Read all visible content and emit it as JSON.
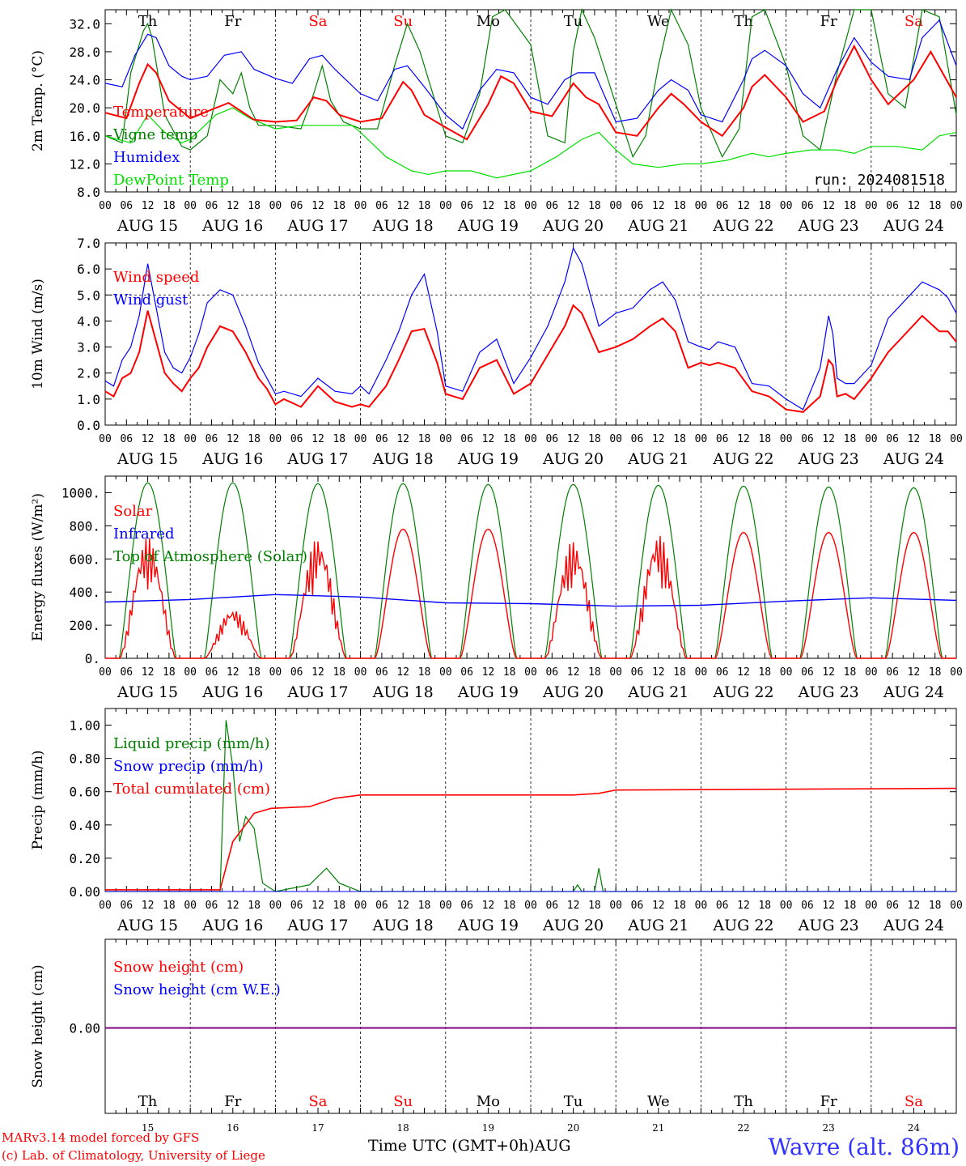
{
  "day_names": [
    "Th",
    "Fr",
    "Sa",
    "Su",
    "Mo",
    "Tu",
    "We",
    "Th",
    "Fr",
    "Sa"
  ],
  "weekend_flags": [
    false,
    false,
    true,
    true,
    false,
    false,
    false,
    false,
    false,
    true
  ],
  "date_labels": [
    "AUG 15",
    "AUG 16",
    "AUG 17",
    "AUG 18",
    "AUG 19",
    "AUG 20",
    "AUG 21",
    "AUG 22",
    "AUG 23",
    "AUG 24"
  ],
  "day_numbers": [
    "15",
    "16",
    "17",
    "18",
    "19",
    "20",
    "21",
    "22",
    "23",
    "24"
  ],
  "hour_labels": [
    "00",
    "06",
    "12",
    "18"
  ],
  "end_hour_label": "00",
  "panel1": {
    "ylabel": "2m Temp. (°C)",
    "ylim": [
      8,
      34
    ],
    "yticks": [
      "8.0",
      "12.0",
      "16.0",
      "20.0",
      "24.0",
      "28.0",
      "32.0"
    ],
    "legend": [
      "Temperature",
      "Vigne temp",
      "Humidex",
      "DewPoint Temp"
    ],
    "run_label": "run: 2024081518"
  },
  "panel2": {
    "ylabel": "10m Wind (m/s)",
    "ylim": [
      0,
      7
    ],
    "yticks": [
      "0.0",
      "1.0",
      "2.0",
      "3.0",
      "4.0",
      "5.0",
      "6.0",
      "7.0"
    ],
    "legend": [
      "Wind speed",
      "Wind gust"
    ]
  },
  "panel3": {
    "ylabel": "Energy fluxes (W/m²)",
    "ylim": [
      0,
      1100
    ],
    "yticks": [
      "0.",
      "200.",
      "400.",
      "600.",
      "800.",
      "1000."
    ],
    "legend": [
      "Solar",
      "Infrared",
      "Top of Atmosphere (Solar)"
    ]
  },
  "panel4": {
    "ylabel": "Precip (mm/h)",
    "ylim": [
      0,
      1.1
    ],
    "yticks": [
      "0.00",
      "0.20",
      "0.40",
      "0.60",
      "0.80",
      "1.00"
    ],
    "legend": [
      "Liquid precip (mm/h)",
      "Snow precip (mm/h)",
      "Total cumulated (cm)"
    ]
  },
  "panel5": {
    "ylabel": "Snow height (cm)",
    "yticks": [
      "0.00"
    ],
    "legend": [
      "Snow height (cm)",
      "Snow height (cm W.E.)"
    ]
  },
  "footer": {
    "model_line": "MARv3.14 model forced by GFS",
    "copyright_line": "(c) Lab. of Climatology, University of Liege",
    "time_label": "Time UTC (GMT+0h)",
    "month_label": "AUG",
    "station": "Wavre (alt. 86m)"
  },
  "colors": {
    "temperature": "#ff0000",
    "vigne": "#008000",
    "humidex": "#0000ff",
    "dewpoint": "#00e000",
    "weekend": "#ff0000",
    "snow_line": "#800080"
  },
  "chart_data": [
    {
      "type": "line",
      "x_unit": "days since 2024-08-15 00 UTC",
      "series": [
        {
          "name": "Temperature",
          "x": [
            0,
            0.25,
            0.4,
            0.5,
            0.6,
            0.75,
            0.9,
            1,
            1.2,
            1.45,
            1.6,
            1.75,
            2,
            2.25,
            2.45,
            2.6,
            2.75,
            3,
            3.25,
            3.5,
            3.6,
            3.75,
            4,
            4.25,
            4.5,
            4.65,
            4.8,
            5,
            5.25,
            5.5,
            5.65,
            5.8,
            6,
            6.25,
            6.5,
            6.65,
            6.8,
            7,
            7.25,
            7.5,
            7.6,
            7.75,
            8,
            8.2,
            8.45,
            8.6,
            8.8,
            9,
            9.2,
            9.5,
            9.7,
            10
          ],
          "y": [
            19.3,
            18.5,
            23.5,
            26.2,
            25,
            21,
            19.5,
            18.5,
            19.5,
            20.7,
            19.5,
            18.3,
            18,
            18.2,
            21.5,
            21,
            19,
            18,
            18.5,
            23.7,
            22.5,
            19,
            17.2,
            15.5,
            20.5,
            24.5,
            23.5,
            19.5,
            18.8,
            23.5,
            21.5,
            20.5,
            16.5,
            16,
            20,
            22,
            20.5,
            18,
            16,
            20,
            23,
            24.7,
            21.5,
            18,
            19.5,
            24,
            28.8,
            24,
            20.5,
            24,
            28,
            21.5
          ]
        },
        {
          "name": "Vigne temp",
          "x": [
            0,
            0.2,
            0.3,
            0.45,
            0.5,
            0.55,
            0.7,
            0.9,
            1,
            1.2,
            1.35,
            1.5,
            1.6,
            1.7,
            1.8,
            2,
            2.3,
            2.45,
            2.55,
            2.65,
            2.8,
            3,
            3.2,
            3.4,
            3.55,
            3.7,
            4,
            4.2,
            4.4,
            4.55,
            4.7,
            5,
            5.2,
            5.4,
            5.5,
            5.6,
            5.75,
            6,
            6.2,
            6.35,
            6.5,
            6.65,
            6.85,
            7,
            7.25,
            7.45,
            7.6,
            7.75,
            8,
            8.2,
            8.4,
            8.6,
            8.8,
            9,
            9.2,
            9.4,
            9.6,
            9.8,
            10
          ],
          "y": [
            16,
            15,
            25,
            31,
            32,
            30,
            19,
            14.5,
            14,
            16,
            24,
            22,
            25,
            20,
            17.5,
            17.5,
            17,
            22,
            26,
            21,
            18,
            17,
            17,
            26,
            32,
            28,
            16,
            15,
            22,
            33,
            34,
            29,
            16,
            15,
            28,
            34,
            30,
            20.5,
            13,
            16,
            26,
            34,
            29,
            20,
            13,
            17,
            33,
            37,
            26,
            16,
            14,
            25,
            34,
            35,
            22,
            20,
            34,
            33,
            19
          ]
        },
        {
          "name": "Humidex",
          "x": [
            0,
            0.2,
            0.35,
            0.5,
            0.6,
            0.75,
            0.9,
            1,
            1.2,
            1.4,
            1.6,
            1.75,
            2,
            2.2,
            2.4,
            2.55,
            2.7,
            3,
            3.2,
            3.4,
            3.55,
            3.75,
            4,
            4.2,
            4.4,
            4.6,
            4.8,
            5,
            5.2,
            5.4,
            5.55,
            5.75,
            6,
            6.25,
            6.5,
            6.65,
            6.85,
            7,
            7.25,
            7.5,
            7.6,
            7.75,
            8,
            8.2,
            8.4,
            8.6,
            8.8,
            9,
            9.2,
            9.45,
            9.6,
            9.8,
            10
          ],
          "y": [
            23.5,
            23,
            27.5,
            30.5,
            30,
            26,
            24.5,
            24,
            24.5,
            27.5,
            28,
            25.5,
            24.2,
            23.5,
            27,
            27.5,
            25.5,
            22,
            21,
            25.5,
            26,
            23,
            19,
            17,
            22.5,
            25.5,
            25,
            21.5,
            20.5,
            24,
            25,
            25,
            18,
            18.5,
            22.5,
            24,
            22.5,
            19,
            18,
            24,
            27,
            28.2,
            26,
            22,
            20,
            25.5,
            30,
            26.5,
            24.5,
            24,
            30,
            32.5,
            26
          ]
        },
        {
          "name": "DewPoint Temp",
          "x": [
            0,
            0.3,
            0.5,
            0.7,
            0.9,
            1,
            1.3,
            1.5,
            1.7,
            2,
            2.3,
            2.6,
            2.9,
            3,
            3.3,
            3.6,
            3.8,
            4,
            4.3,
            4.6,
            4.8,
            5,
            5.3,
            5.6,
            5.8,
            6,
            6.2,
            6.5,
            6.8,
            7,
            7.3,
            7.6,
            7.8,
            8,
            8.3,
            8.6,
            8.8,
            9,
            9.3,
            9.6,
            9.8,
            10
          ],
          "y": [
            16,
            15,
            19,
            16.5,
            15,
            15.5,
            19,
            20,
            18.5,
            17,
            17.5,
            17.5,
            17.5,
            16.5,
            13,
            11,
            10.5,
            11,
            11,
            10,
            10.5,
            11,
            13,
            15.5,
            16.5,
            14,
            12,
            11.5,
            12,
            12,
            12.5,
            13.5,
            13,
            13.5,
            14,
            14,
            13.5,
            14.5,
            14.5,
            14,
            16,
            16.5
          ]
        }
      ],
      "xlabel": "",
      "ylabel": "2m Temp. (°C)",
      "ylim": [
        8,
        34
      ]
    },
    {
      "type": "line",
      "series": [
        {
          "name": "Wind speed",
          "x": [
            0,
            0.1,
            0.2,
            0.3,
            0.4,
            0.5,
            0.6,
            0.7,
            0.8,
            0.9,
            1,
            1.1,
            1.2,
            1.35,
            1.5,
            1.65,
            1.8,
            1.9,
            2,
            2.1,
            2.3,
            2.5,
            2.7,
            2.9,
            3,
            3.1,
            3.3,
            3.45,
            3.6,
            3.75,
            3.9,
            4,
            4.2,
            4.4,
            4.6,
            4.8,
            5,
            5.2,
            5.4,
            5.5,
            5.6,
            5.8,
            6,
            6.2,
            6.4,
            6.55,
            6.7,
            6.85,
            7,
            7.1,
            7.2,
            7.4,
            7.6,
            7.8,
            8,
            8.2,
            8.4,
            8.5,
            8.55,
            8.6,
            8.7,
            8.8,
            9,
            9.2,
            9.4,
            9.6,
            9.8,
            9.9,
            10
          ],
          "y": [
            1.3,
            1.1,
            1.8,
            2,
            2.8,
            4.4,
            3.2,
            2,
            1.6,
            1.3,
            1.8,
            2.2,
            3,
            3.8,
            3.6,
            2.8,
            1.8,
            1.4,
            0.8,
            1,
            0.7,
            1.5,
            0.9,
            0.7,
            0.8,
            0.7,
            1.5,
            2.5,
            3.6,
            3.7,
            2.4,
            1.2,
            1,
            2.2,
            2.5,
            1.2,
            1.6,
            2.7,
            3.8,
            4.6,
            4.3,
            2.8,
            3,
            3.3,
            3.8,
            4.1,
            3.6,
            2.2,
            2.4,
            2.3,
            2.4,
            2.2,
            1.3,
            1.1,
            0.6,
            0.5,
            1.1,
            2.5,
            2.3,
            1.1,
            1.2,
            1.0,
            1.8,
            2.8,
            3.5,
            4.2,
            3.6,
            3.6,
            3.2
          ]
        },
        {
          "name": "Wind gust",
          "x": [
            0,
            0.1,
            0.2,
            0.3,
            0.4,
            0.5,
            0.6,
            0.7,
            0.8,
            0.9,
            1,
            1.1,
            1.2,
            1.35,
            1.5,
            1.65,
            1.8,
            1.9,
            2,
            2.1,
            2.3,
            2.5,
            2.7,
            2.9,
            3,
            3.1,
            3.3,
            3.45,
            3.6,
            3.75,
            3.9,
            4,
            4.2,
            4.4,
            4.6,
            4.8,
            5,
            5.2,
            5.4,
            5.5,
            5.6,
            5.8,
            6,
            6.2,
            6.4,
            6.55,
            6.7,
            6.85,
            7,
            7.1,
            7.2,
            7.4,
            7.6,
            7.8,
            8,
            8.2,
            8.4,
            8.5,
            8.55,
            8.6,
            8.7,
            8.8,
            9,
            9.2,
            9.4,
            9.6,
            9.8,
            9.9,
            10
          ],
          "y": [
            1.7,
            1.5,
            2.5,
            3,
            4.2,
            6.2,
            4.5,
            2.8,
            2.2,
            2,
            2.6,
            3.5,
            4.7,
            5.2,
            5,
            3.8,
            2.4,
            1.8,
            1.2,
            1.3,
            1.1,
            1.8,
            1.3,
            1.2,
            1.5,
            1.2,
            2.5,
            3.6,
            5,
            5.8,
            3.6,
            1.5,
            1.3,
            2.8,
            3.3,
            1.6,
            2.6,
            3.8,
            5.5,
            6.8,
            6.2,
            3.8,
            4.3,
            4.5,
            5.2,
            5.5,
            4.8,
            3.2,
            3,
            2.9,
            3.2,
            3.0,
            1.6,
            1.5,
            1.0,
            0.6,
            2.2,
            4.2,
            3.5,
            1.8,
            1.6,
            1.6,
            2.3,
            4.1,
            4.8,
            5.5,
            5.2,
            4.9,
            4.3
          ]
        }
      ],
      "ylabel": "10m Wind (m/s)",
      "ylim": [
        0,
        7
      ]
    },
    {
      "type": "line",
      "series": [
        {
          "name": "Solar",
          "peaks": [
            730,
            300,
            730,
            780,
            780,
            710,
            750,
            760,
            760,
            760
          ]
        },
        {
          "name": "Infrared",
          "x": [
            0,
            1,
            2,
            3,
            4,
            5,
            6,
            7,
            8,
            9,
            10
          ],
          "y": [
            340,
            355,
            385,
            370,
            335,
            330,
            315,
            320,
            345,
            365,
            350
          ]
        },
        {
          "name": "Top of Atmosphere (Solar)",
          "peaks": [
            1060,
            1060,
            1055,
            1055,
            1050,
            1050,
            1045,
            1040,
            1035,
            1030
          ]
        }
      ],
      "ylabel": "Energy fluxes (W/m²)",
      "ylim": [
        0,
        1100
      ]
    },
    {
      "type": "line",
      "series": [
        {
          "name": "Liquid precip (mm/h)",
          "x": [
            0,
            1.35,
            1.42,
            1.5,
            1.58,
            1.65,
            1.75,
            1.85,
            2,
            2.4,
            2.6,
            2.75,
            3,
            5.5,
            5.55,
            5.6,
            5.75,
            5.8,
            5.85,
            10
          ],
          "y": [
            0,
            0,
            1.03,
            0.75,
            0.3,
            0.45,
            0.38,
            0.05,
            0,
            0.04,
            0.14,
            0.05,
            0,
            0,
            0.04,
            0,
            0,
            0.14,
            0,
            0
          ]
        },
        {
          "name": "Snow precip (mm/h)",
          "x": [
            0,
            10
          ],
          "y": [
            0,
            0
          ]
        },
        {
          "name": "Total cumulated (cm)",
          "x": [
            0,
            1.35,
            1.5,
            1.75,
            1.95,
            2.4,
            2.7,
            3,
            5.5,
            5.8,
            6,
            10
          ],
          "y": [
            0.01,
            0.01,
            0.3,
            0.47,
            0.5,
            0.51,
            0.56,
            0.58,
            0.58,
            0.59,
            0.61,
            0.62
          ]
        }
      ],
      "ylabel": "Precip (mm/h)",
      "ylim": [
        0,
        1.1
      ]
    },
    {
      "type": "line",
      "series": [
        {
          "name": "Snow height (cm)",
          "x": [
            0,
            10
          ],
          "y": [
            0,
            0
          ]
        },
        {
          "name": "Snow height (cm W.E.)",
          "x": [
            0,
            10
          ],
          "y": [
            0,
            0
          ]
        }
      ],
      "ylabel": "Snow height (cm)"
    }
  ]
}
